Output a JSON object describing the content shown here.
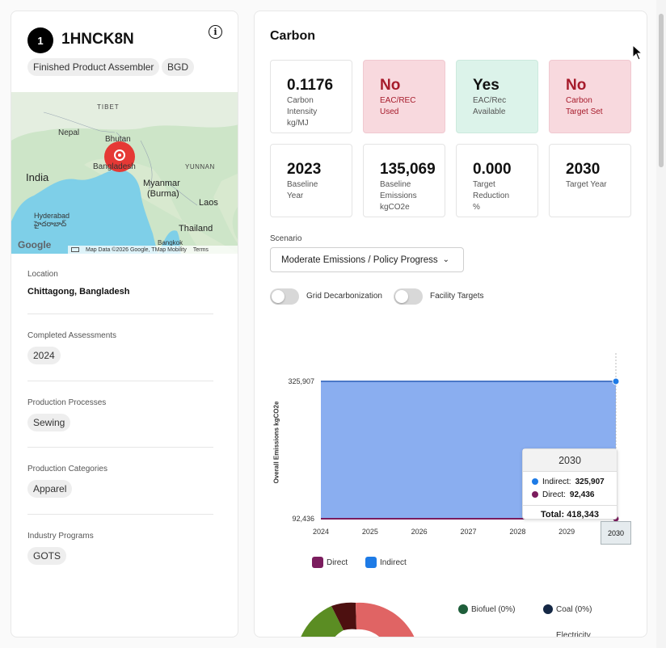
{
  "facility": {
    "rank": "1",
    "name": "1HNCK8N",
    "tags": [
      "Finished Product Assembler",
      "BGD"
    ],
    "location_label": "Location",
    "location_value": "Chittagong, Bangladesh",
    "assessments_label": "Completed Assessments",
    "assessments": [
      "2024"
    ],
    "processes_label": "Production Processes",
    "processes": [
      "Sewing"
    ],
    "categories_label": "Production Categories",
    "categories": [
      "Apparel"
    ],
    "programs_label": "Industry Programs",
    "programs": [
      "GOTS"
    ]
  },
  "map": {
    "labels": [
      "TIBET",
      "Nepal",
      "Bhutan",
      "India",
      "Bangladesh",
      "YUNNAN",
      "Myanmar",
      "(Burma)",
      "Laos",
      "Hyderabad",
      "హైదరాబాద్",
      "Thailand",
      "Bangkok"
    ],
    "attribution": "Map Data ©2026 Google, TMap Mobility",
    "terms": "Terms",
    "logo": "Google",
    "colors": {
      "water": "#7ecfe8",
      "land": "#cde5c8",
      "pin": "#e53935"
    }
  },
  "carbon": {
    "title": "Carbon",
    "cards": [
      {
        "big": "0.1176",
        "sub": "Carbon\nIntensity\nkg/MJ",
        "style": "plain"
      },
      {
        "big": "No",
        "sub": "EAC/REC\nUsed",
        "style": "red"
      },
      {
        "big": "Yes",
        "sub": "EAC/Rec\nAvailable",
        "style": "green"
      },
      {
        "big": "No",
        "sub": "Carbon\nTarget Set",
        "style": "red"
      },
      {
        "big": "2023",
        "sub": "Baseline\nYear",
        "style": "plain"
      },
      {
        "big": "135,069",
        "sub": "Baseline\nEmissions\nkgCO2e",
        "style": "plain"
      },
      {
        "big": "0.000",
        "sub": "Target\nReduction\n%",
        "style": "plain"
      },
      {
        "big": "2030",
        "sub": "Target Year",
        "style": "plain"
      }
    ],
    "scenario_label": "Scenario",
    "scenario_value": "Moderate Emissions / Policy Progress",
    "toggles": [
      "Grid Decarbonization",
      "Facility Targets"
    ],
    "tooltip": {
      "year": "2030",
      "indirect_label": "Indirect:",
      "indirect_value": "325,907",
      "direct_label": "Direct:",
      "direct_value": "92,436",
      "total": "Total: 418,343"
    },
    "bottom_legend": [
      "Biofuel (0%)",
      "Coal (0%)",
      "Electricity"
    ],
    "colors": {
      "direct": "#7b1d5e",
      "indirect": "#1e7be6",
      "area": "#8aaef0",
      "biofuel": "#1e5e3a",
      "coal": "#152845"
    }
  },
  "chart_data": {
    "type": "area",
    "x": [
      "2024",
      "2025",
      "2026",
      "2027",
      "2028",
      "2029",
      "2030"
    ],
    "series": [
      {
        "name": "Direct",
        "values": [
          92436,
          92436,
          92436,
          92436,
          92436,
          92436,
          92436
        ]
      },
      {
        "name": "Indirect",
        "values": [
          325907,
          325907,
          325907,
          325907,
          325907,
          325907,
          325907
        ]
      }
    ],
    "ylabel": "Overall Emissions kgCO2e",
    "yticks": [
      "325,907",
      "92,436"
    ],
    "legend": [
      "Direct",
      "Indirect"
    ],
    "legend_position": "bottom-left"
  }
}
